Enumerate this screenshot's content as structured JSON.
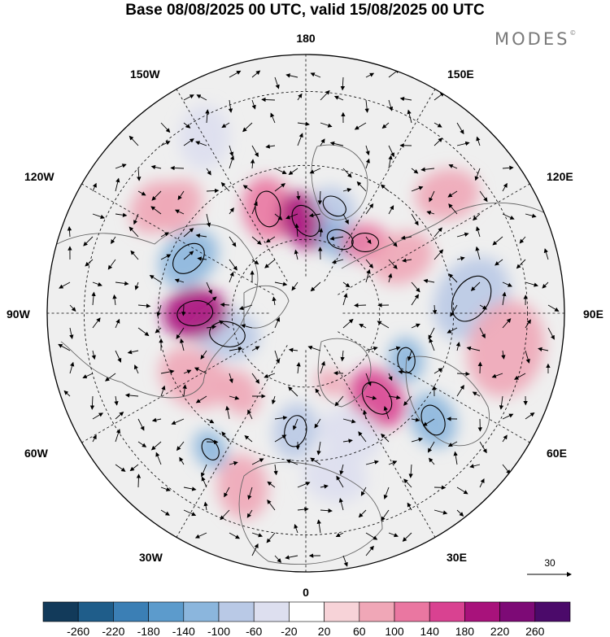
{
  "title": "Base 08/08/2025 00 UTC, valid 15/08/2025 00 UTC",
  "brand": {
    "name": "MODES",
    "mark": "©"
  },
  "longitude_labels": {
    "top": "180",
    "bottom": "0",
    "left": "90W",
    "right": "90E",
    "upper_left_1": "150W",
    "upper_left_2": "120W",
    "upper_right_1": "150E",
    "upper_right_2": "120E",
    "lower_left_1": "60W",
    "lower_left_2": "30W",
    "lower_right_1": "60E",
    "lower_right_2": "30E"
  },
  "vector_key": {
    "label": "30"
  },
  "colorbar": {
    "ticks": [
      "-260",
      "-220",
      "-180",
      "-140",
      "-100",
      "-60",
      "-20",
      "20",
      "60",
      "100",
      "140",
      "180",
      "220",
      "260"
    ],
    "colors": [
      "#123a5a",
      "#1f5d8a",
      "#3b7fb5",
      "#5c9bcc",
      "#8bb6dd",
      "#b9c9e6",
      "#dddfef",
      "#ffffff",
      "#f7d3d8",
      "#f0a7b7",
      "#ea77a1",
      "#d94291",
      "#a8127b",
      "#7d0a76",
      "#4b0a6a"
    ]
  },
  "anomalies": [
    {
      "lon": 200,
      "lat": 60,
      "r": 40,
      "v": 100
    },
    {
      "lon": 180,
      "lat": 65,
      "r": 38,
      "v": 180
    },
    {
      "lon": 165,
      "lat": 60,
      "r": 28,
      "v": -100
    },
    {
      "lon": 155,
      "lat": 68,
      "r": 30,
      "v": -140
    },
    {
      "lon": 140,
      "lat": 65,
      "r": 30,
      "v": 100
    },
    {
      "lon": 120,
      "lat": 60,
      "r": 40,
      "v": 60
    },
    {
      "lon": 95,
      "lat": 45,
      "r": 55,
      "v": -100
    },
    {
      "lon": 80,
      "lat": 35,
      "r": 60,
      "v": 60
    },
    {
      "lon": 65,
      "lat": 60,
      "r": 28,
      "v": -140
    },
    {
      "lon": 50,
      "lat": 45,
      "r": 35,
      "v": -140
    },
    {
      "lon": 40,
      "lat": 60,
      "r": 40,
      "v": 140
    },
    {
      "lon": 20,
      "lat": 55,
      "r": 40,
      "v": -60
    },
    {
      "lon": 10,
      "lat": 45,
      "r": 40,
      "v": -60
    },
    {
      "lon": 355,
      "lat": 58,
      "r": 35,
      "v": -100
    },
    {
      "lon": 340,
      "lat": 40,
      "r": 40,
      "v": 60
    },
    {
      "lon": 325,
      "lat": 45,
      "r": 25,
      "v": -140
    },
    {
      "lon": 300,
      "lat": 55,
      "r": 45,
      "v": 60
    },
    {
      "lon": 285,
      "lat": 68,
      "r": 40,
      "v": -100
    },
    {
      "lon": 270,
      "lat": 60,
      "r": 40,
      "v": 180
    },
    {
      "lon": 245,
      "lat": 55,
      "r": 40,
      "v": -140
    },
    {
      "lon": 230,
      "lat": 45,
      "r": 35,
      "v": 60
    },
    {
      "lon": 210,
      "lat": 35,
      "r": 40,
      "v": -60
    },
    {
      "lon": 235,
      "lat": 40,
      "r": 35,
      "v": 60
    },
    {
      "lon": 130,
      "lat": 40,
      "r": 40,
      "v": 60
    },
    {
      "lon": 320,
      "lat": 62,
      "r": 30,
      "v": 60
    },
    {
      "lon": 20,
      "lat": 70,
      "r": 20,
      "v": 60
    }
  ]
}
